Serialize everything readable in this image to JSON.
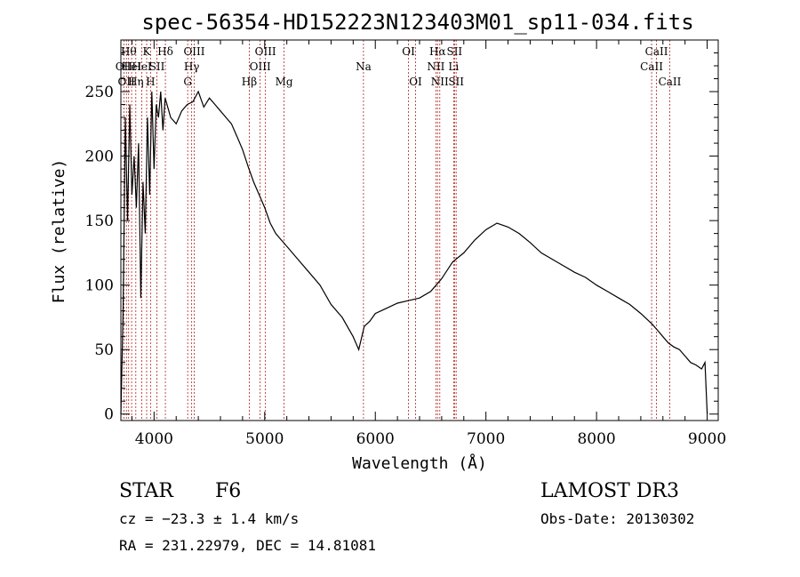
{
  "chart_data": {
    "type": "line",
    "title": "spec-56354-HD152223N123403M01_sp11-034.fits",
    "xlabel": "Wavelength (Å)",
    "ylabel": "Flux (relative)",
    "xlim": [
      3700,
      9100
    ],
    "ylim": [
      -5,
      290
    ],
    "x_ticks": [
      4000,
      5000,
      6000,
      7000,
      8000,
      9000
    ],
    "y_ticks": [
      0,
      50,
      100,
      150,
      200,
      250
    ],
    "grid": false,
    "legend": "none",
    "line_color": "#000000",
    "marker_color": "#b22222",
    "series": [
      {
        "x": [
          3700,
          3720,
          3740,
          3760,
          3780,
          3800,
          3820,
          3840,
          3860,
          3880,
          3900,
          3920,
          3940,
          3960,
          3980,
          4000,
          4020,
          4040,
          4060,
          4080,
          4100,
          4150,
          4200,
          4250,
          4300,
          4350,
          4400,
          4450,
          4500,
          4550,
          4600,
          4650,
          4700,
          4750,
          4800,
          4850,
          4900,
          4950,
          5000,
          5050,
          5100,
          5150,
          5200,
          5300,
          5400,
          5500,
          5600,
          5700,
          5800,
          5850,
          5900,
          5950,
          6000,
          6100,
          6200,
          6300,
          6400,
          6500,
          6550,
          6600,
          6700,
          6800,
          6900,
          7000,
          7100,
          7200,
          7300,
          7400,
          7500,
          7600,
          7700,
          7800,
          7900,
          8000,
          8100,
          8200,
          8300,
          8400,
          8500,
          8550,
          8600,
          8650,
          8700,
          8750,
          8800,
          8850,
          8900,
          8950,
          8980,
          9000
        ],
        "y": [
          0,
          80,
          230,
          150,
          240,
          170,
          200,
          160,
          210,
          90,
          180,
          140,
          230,
          170,
          250,
          190,
          240,
          230,
          250,
          220,
          245,
          230,
          225,
          235,
          240,
          242,
          250,
          238,
          245,
          240,
          235,
          230,
          225,
          215,
          205,
          192,
          180,
          170,
          160,
          148,
          140,
          135,
          130,
          120,
          110,
          100,
          85,
          75,
          60,
          50,
          68,
          72,
          78,
          82,
          86,
          88,
          90,
          95,
          100,
          105,
          118,
          125,
          135,
          143,
          148,
          145,
          140,
          133,
          125,
          120,
          115,
          110,
          106,
          100,
          95,
          90,
          85,
          78,
          70,
          65,
          60,
          55,
          52,
          50,
          45,
          40,
          38,
          35,
          40,
          0
        ]
      }
    ],
    "lines": [
      {
        "x": 3727,
        "label": "OII",
        "row": 2
      },
      {
        "x": 3750,
        "label": "OII",
        "row": 3
      },
      {
        "x": 3770,
        "label": "Hθ",
        "row": 1
      },
      {
        "x": 3797,
        "label": "HeI",
        "row": 2
      },
      {
        "x": 3835,
        "label": "Hη",
        "row": 3
      },
      {
        "x": 3889,
        "label": "HeI",
        "row": 2
      },
      {
        "x": 3933,
        "label": "K",
        "row": 1
      },
      {
        "x": 3968,
        "label": "H",
        "row": 3
      },
      {
        "x": 4026,
        "label": "SII",
        "row": 2
      },
      {
        "x": 4102,
        "label": "Hδ",
        "row": 1
      },
      {
        "x": 4304,
        "label": "G",
        "row": 3
      },
      {
        "x": 4340,
        "label": "Hγ",
        "row": 2
      },
      {
        "x": 4363,
        "label": "OIII",
        "row": 1
      },
      {
        "x": 4861,
        "label": "Hβ",
        "row": 3
      },
      {
        "x": 4959,
        "label": "OIII",
        "row": 2
      },
      {
        "x": 5007,
        "label": "OIII",
        "row": 1
      },
      {
        "x": 5175,
        "label": "Mg",
        "row": 3
      },
      {
        "x": 5893,
        "label": "Na",
        "row": 2
      },
      {
        "x": 6300,
        "label": "OI",
        "row": 1
      },
      {
        "x": 6364,
        "label": "OI",
        "row": 3
      },
      {
        "x": 6548,
        "label": "NII",
        "row": 2
      },
      {
        "x": 6563,
        "label": "Hα",
        "row": 1
      },
      {
        "x": 6583,
        "label": "NII",
        "row": 3
      },
      {
        "x": 6708,
        "label": "Li",
        "row": 2
      },
      {
        "x": 6716,
        "label": "SII",
        "row": 1
      },
      {
        "x": 6731,
        "label": "SII",
        "row": 3
      },
      {
        "x": 8498,
        "label": "CaII",
        "row": 2
      },
      {
        "x": 8542,
        "label": "CaII",
        "row": 1
      },
      {
        "x": 8662,
        "label": "CaII",
        "row": 3
      }
    ]
  },
  "info": {
    "object_type": "STAR",
    "subclass": "F6",
    "survey": "LAMOST DR3",
    "cz": "cz = −23.3 ± 1.4 km/s",
    "obs_date": "Obs-Date: 20130302",
    "coords": "RA = 231.22979, DEC =  14.81081"
  }
}
